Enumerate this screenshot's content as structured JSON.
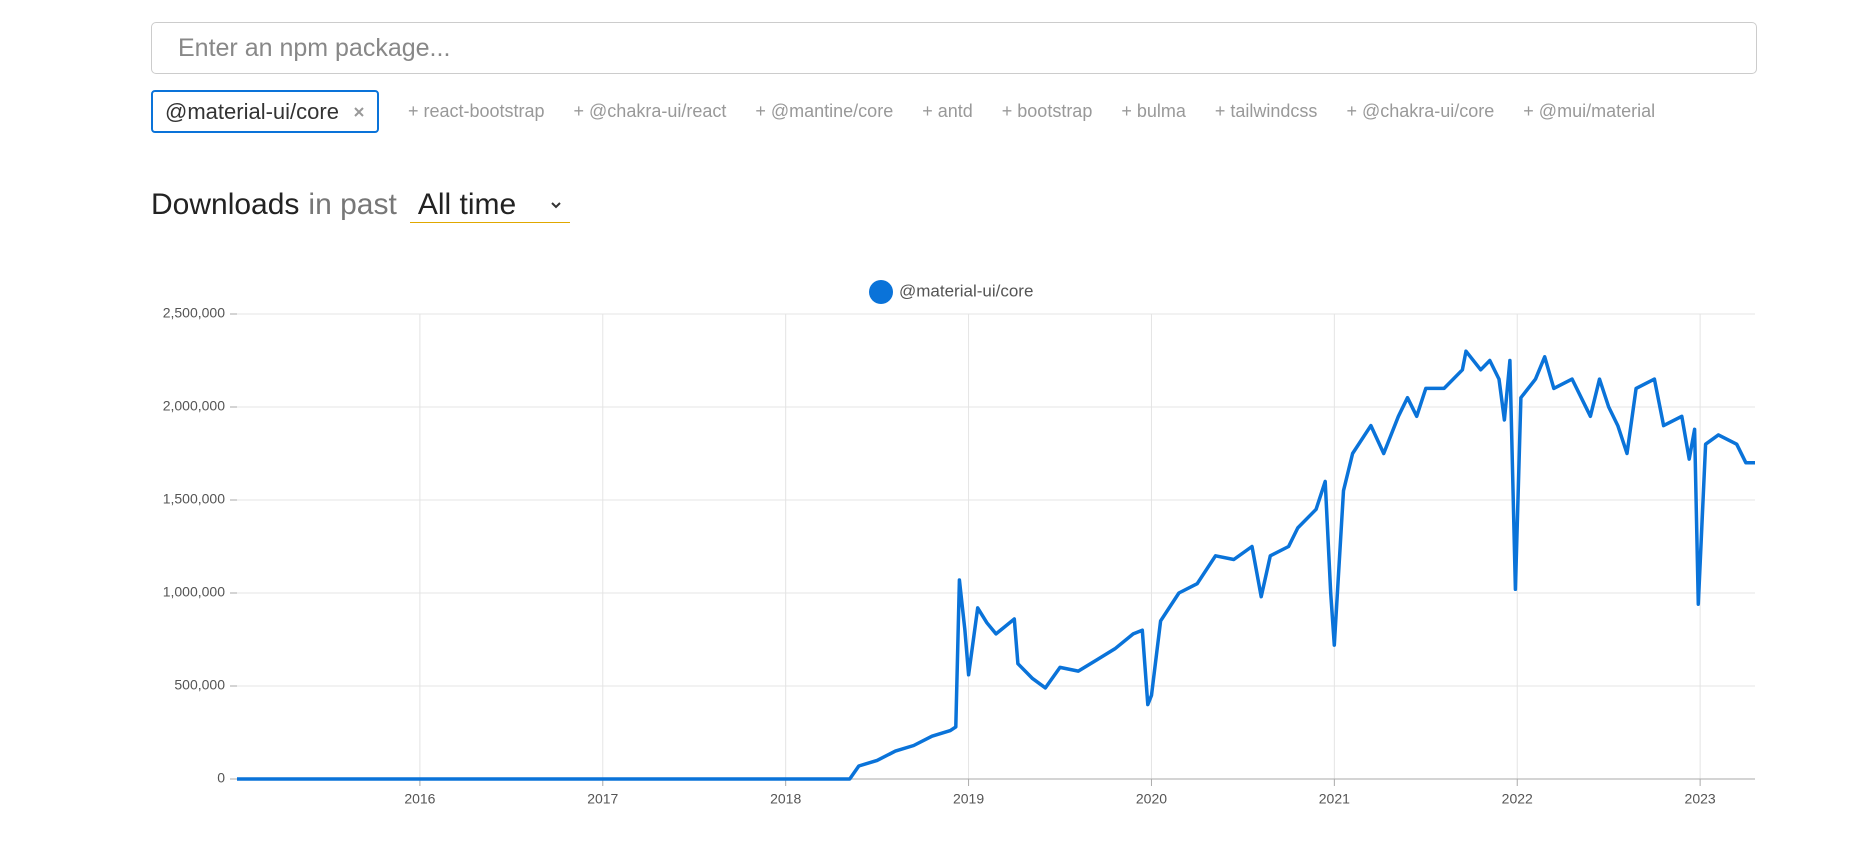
{
  "search": {
    "placeholder": "Enter an npm package..."
  },
  "selected": [
    "@material-ui/core"
  ],
  "suggestions": [
    "react-bootstrap",
    "@chakra-ui/react",
    "@mantine/core",
    "antd",
    "bootstrap",
    "bulma",
    "tailwindcss",
    "@chakra-ui/core",
    "@mui/material"
  ],
  "suggestion_prefix": "+",
  "heading": {
    "strong": "Downloads",
    "rest": "in past",
    "period": "All time"
  },
  "chart_data": {
    "type": "line",
    "x": [
      2015.0,
      2018.35,
      2018.4,
      2018.5,
      2018.6,
      2018.7,
      2018.8,
      2018.9,
      2018.93,
      2018.95,
      2018.98,
      2019.0,
      2019.05,
      2019.1,
      2019.15,
      2019.2,
      2019.25,
      2019.27,
      2019.35,
      2019.42,
      2019.5,
      2019.6,
      2019.7,
      2019.8,
      2019.9,
      2019.95,
      2019.98,
      2020.0,
      2020.05,
      2020.15,
      2020.25,
      2020.35,
      2020.45,
      2020.55,
      2020.6,
      2020.65,
      2020.75,
      2020.8,
      2020.9,
      2020.95,
      2020.98,
      2021.0,
      2021.05,
      2021.1,
      2021.2,
      2021.27,
      2021.35,
      2021.4,
      2021.45,
      2021.5,
      2021.6,
      2021.7,
      2021.72,
      2021.8,
      2021.85,
      2021.9,
      2021.93,
      2021.96,
      2021.99,
      2022.02,
      2022.1,
      2022.15,
      2022.2,
      2022.3,
      2022.4,
      2022.45,
      2022.5,
      2022.55,
      2022.6,
      2022.65,
      2022.75,
      2022.8,
      2022.9,
      2022.94,
      2022.97,
      2022.99,
      2023.03,
      2023.1,
      2023.2,
      2023.25,
      2023.3
    ],
    "series": [
      {
        "name": "@material-ui/core",
        "color": "#0a73d9",
        "values": [
          0,
          0,
          70000,
          100000,
          150000,
          180000,
          230000,
          260000,
          280000,
          1070000,
          800000,
          560000,
          920000,
          840000,
          780000,
          820000,
          860000,
          620000,
          540000,
          490000,
          600000,
          580000,
          640000,
          700000,
          780000,
          800000,
          400000,
          450000,
          850000,
          1000000,
          1050000,
          1200000,
          1180000,
          1250000,
          980000,
          1200000,
          1250000,
          1350000,
          1450000,
          1600000,
          1000000,
          720000,
          1550000,
          1750000,
          1900000,
          1750000,
          1950000,
          2050000,
          1950000,
          2100000,
          2100000,
          2200000,
          2300000,
          2200000,
          2250000,
          2150000,
          1930000,
          2250000,
          1020000,
          2050000,
          2150000,
          2270000,
          2100000,
          2150000,
          1950000,
          2150000,
          2000000,
          1900000,
          1750000,
          2100000,
          2150000,
          1900000,
          1950000,
          1720000,
          1880000,
          940000,
          1800000,
          1850000,
          1800000,
          1700000,
          1700000
        ]
      }
    ],
    "xlim": [
      2015.0,
      2023.3
    ],
    "xticks": [
      2016,
      2017,
      2018,
      2019,
      2020,
      2021,
      2022,
      2023
    ],
    "ylim": [
      0,
      2500000
    ],
    "yticks": [
      0,
      {
        "value": 500000,
        "label": "500,000"
      },
      {
        "value": 1000000,
        "label": "1,000,000"
      },
      {
        "value": 1500000,
        "label": "1,500,000"
      },
      {
        "value": 2000000,
        "label": "2,000,000"
      },
      {
        "value": 2500000,
        "label": "2,500,000"
      }
    ],
    "grid": true
  }
}
